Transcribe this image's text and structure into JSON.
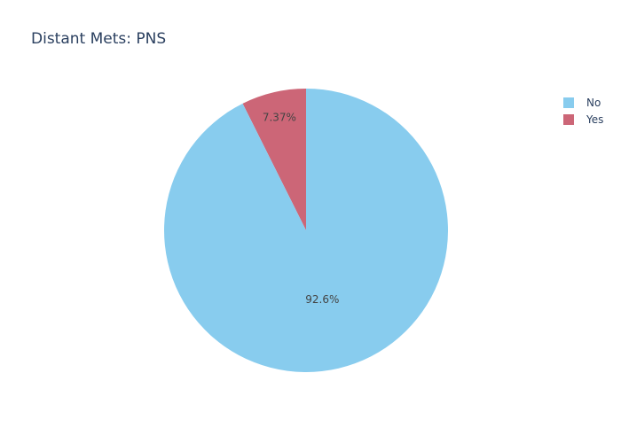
{
  "chart_data": {
    "type": "pie",
    "title": "Distant Mets: PNS",
    "labels": [
      "Yes",
      "No"
    ],
    "values": [
      7.37,
      92.63
    ],
    "slice_labels": [
      "7.37%",
      "92.6%"
    ],
    "colors": [
      "#cc6677",
      "#88ccee"
    ],
    "legend": {
      "placement": "top-right",
      "entries": [
        {
          "label": "No",
          "color": "#88ccee"
        },
        {
          "label": "Yes",
          "color": "#cc6677"
        }
      ]
    }
  }
}
